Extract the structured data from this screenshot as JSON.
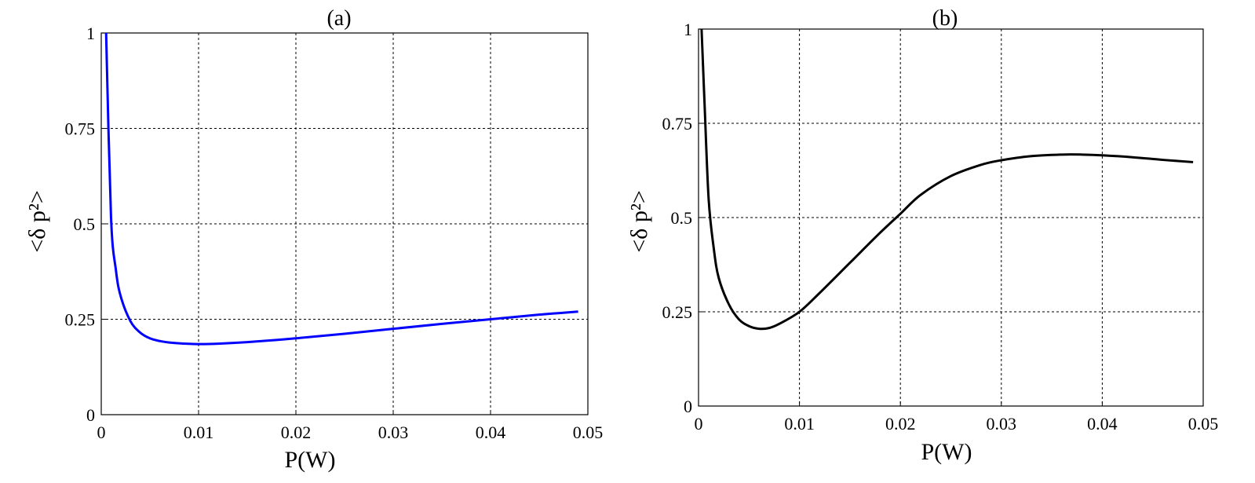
{
  "chart_data": [
    {
      "type": "line",
      "title": "(a)",
      "xlabel": "P(W)",
      "ylabel": "<δ p²>",
      "xlim": [
        0,
        0.05
      ],
      "ylim": [
        0,
        1
      ],
      "x_ticks": [
        "0",
        "0.01",
        "0.02",
        "0.03",
        "0.04",
        "0.05"
      ],
      "y_ticks": [
        "0",
        "0.25",
        "0.5",
        "0.75",
        "1"
      ],
      "grid": true,
      "series": [
        {
          "color": "#0000ff",
          "x": [
            0.0005,
            0.001,
            0.0015,
            0.002,
            0.003,
            0.004,
            0.005,
            0.006,
            0.007,
            0.008,
            0.01,
            0.012,
            0.015,
            0.02,
            0.025,
            0.03,
            0.035,
            0.04,
            0.045,
            0.049
          ],
          "y": [
            1.0,
            0.52,
            0.38,
            0.31,
            0.245,
            0.215,
            0.2,
            0.193,
            0.189,
            0.187,
            0.185,
            0.186,
            0.19,
            0.2,
            0.212,
            0.225,
            0.238,
            0.25,
            0.262,
            0.27
          ]
        }
      ]
    },
    {
      "type": "line",
      "title": "(b)",
      "xlabel": "P(W)",
      "ylabel": "<δ p²>",
      "xlim": [
        0,
        0.05
      ],
      "ylim": [
        0,
        1
      ],
      "x_ticks": [
        "0",
        "0.01",
        "0.02",
        "0.03",
        "0.04",
        "0.05"
      ],
      "y_ticks": [
        "0",
        "0.25",
        "0.5",
        "0.75",
        "1"
      ],
      "grid": true,
      "series": [
        {
          "color": "#000000",
          "x": [
            0.0003,
            0.0006,
            0.001,
            0.0015,
            0.002,
            0.003,
            0.004,
            0.005,
            0.006,
            0.007,
            0.008,
            0.01,
            0.012,
            0.015,
            0.018,
            0.02,
            0.022,
            0.025,
            0.028,
            0.03,
            0.033,
            0.036,
            0.038,
            0.04,
            0.043,
            0.046,
            0.049
          ],
          "y": [
            1.0,
            0.8,
            0.55,
            0.42,
            0.34,
            0.27,
            0.23,
            0.212,
            0.205,
            0.207,
            0.218,
            0.25,
            0.3,
            0.38,
            0.46,
            0.51,
            0.56,
            0.61,
            0.64,
            0.652,
            0.663,
            0.667,
            0.667,
            0.665,
            0.66,
            0.653,
            0.647
          ]
        }
      ]
    }
  ]
}
